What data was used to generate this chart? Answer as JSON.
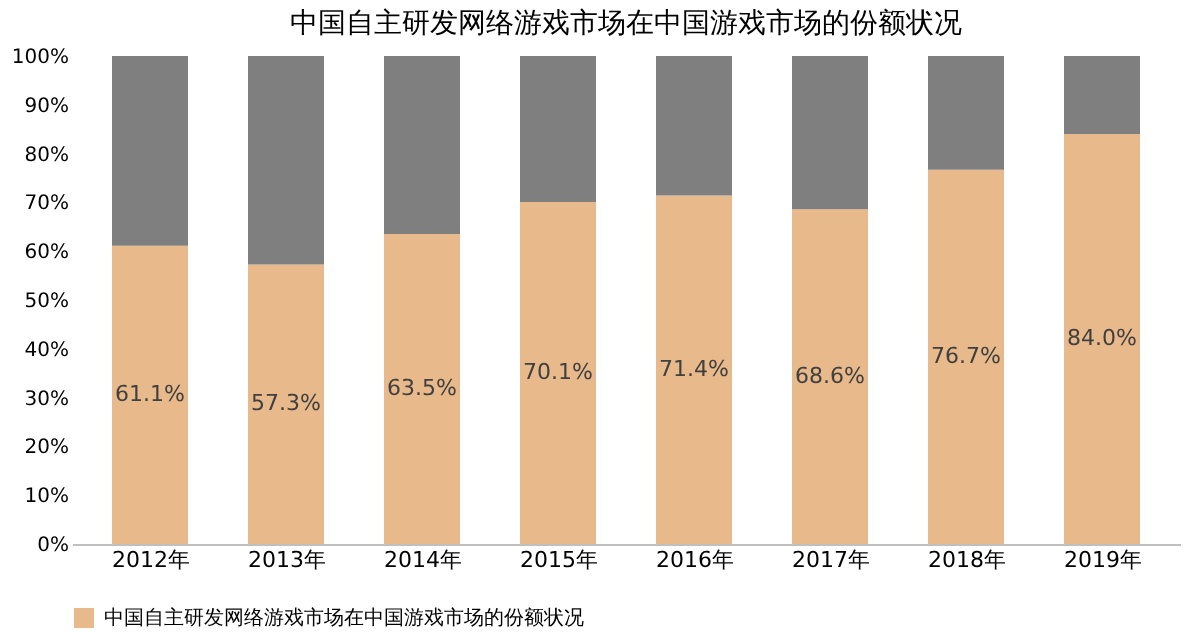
{
  "chart_data": {
    "type": "bar",
    "title": "中国自主研发网络游戏市场在中国游戏市场的份额状况",
    "categories": [
      "2012年",
      "2013年",
      "2014年",
      "2015年",
      "2016年",
      "2017年",
      "2018年",
      "2019年"
    ],
    "stacked": true,
    "series": [
      {
        "name": "中国自主研发网络游戏市场在中国游戏市场的份额状况",
        "color": "#e8b98a",
        "values": [
          61.1,
          57.3,
          63.5,
          70.1,
          71.4,
          68.6,
          76.7,
          84.0
        ],
        "value_labels": [
          "61.1%",
          "57.3%",
          "63.5%",
          "70.1%",
          "71.4%",
          "68.6%",
          "76.7%",
          "84.0%"
        ]
      },
      {
        "color": "#7f7f7f",
        "values": [
          38.9,
          42.7,
          36.5,
          29.9,
          28.6,
          31.4,
          23.3,
          16.0
        ]
      }
    ],
    "ylim": [
      0,
      100
    ],
    "yticks": [
      {
        "value": 0,
        "label": "0%"
      },
      {
        "value": 10,
        "label": "10%"
      },
      {
        "value": 20,
        "label": "20%"
      },
      {
        "value": 30,
        "label": "30%"
      },
      {
        "value": 40,
        "label": "40%"
      },
      {
        "value": 50,
        "label": "50%"
      },
      {
        "value": 60,
        "label": "60%"
      },
      {
        "value": 70,
        "label": "70%"
      },
      {
        "value": 80,
        "label": "80%"
      },
      {
        "value": 90,
        "label": "90%"
      },
      {
        "value": 100,
        "label": "100%"
      }
    ],
    "grid": false,
    "legend": "bottom"
  }
}
